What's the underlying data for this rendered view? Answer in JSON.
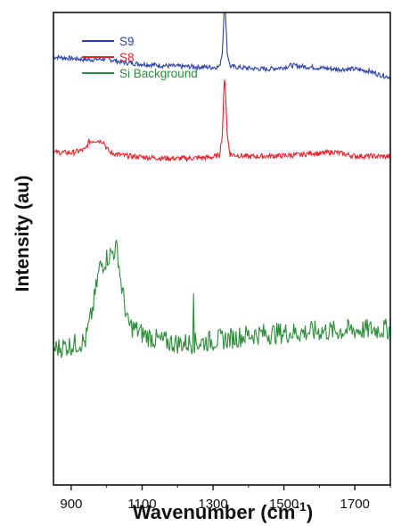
{
  "chart_data": {
    "type": "line",
    "xlabel": "Wavenumber (cm",
    "xlabel_superscript": "-1",
    "xlabel_close": ")",
    "ylabel": "Intensity (au)",
    "xlim": [
      850,
      1800
    ],
    "ylim": [
      0,
      100
    ],
    "yticks_shown": false,
    "grid": false,
    "legend_position": "top-left",
    "xticks": [
      900,
      1100,
      1300,
      1500,
      1700
    ],
    "series": [
      {
        "name": "S9",
        "color": "#2b3fa8",
        "noise": 0.5,
        "points": [
          [
            850,
            90.6
          ],
          [
            900,
            90.3
          ],
          [
            950,
            90.0
          ],
          [
            980,
            90.1
          ],
          [
            1000,
            90.2
          ],
          [
            1050,
            89.4
          ],
          [
            1100,
            89.1
          ],
          [
            1150,
            88.8
          ],
          [
            1200,
            88.6
          ],
          [
            1250,
            88.5
          ],
          [
            1300,
            88.4
          ],
          [
            1318,
            88.5
          ],
          [
            1326,
            91.5
          ],
          [
            1330,
            98.0
          ],
          [
            1333,
            104.2
          ],
          [
            1336,
            98.5
          ],
          [
            1340,
            91.5
          ],
          [
            1348,
            88.6
          ],
          [
            1400,
            88.2
          ],
          [
            1450,
            88.0
          ],
          [
            1500,
            88.4
          ],
          [
            1520,
            88.8
          ],
          [
            1550,
            88.6
          ],
          [
            1600,
            88.3
          ],
          [
            1650,
            88.0
          ],
          [
            1700,
            88.0
          ],
          [
            1740,
            87.6
          ],
          [
            1770,
            86.8
          ],
          [
            1800,
            86.3
          ]
        ]
      },
      {
        "name": "S8",
        "color": "#e8202a",
        "noise": 0.55,
        "points": [
          [
            850,
            70.4
          ],
          [
            900,
            70.3
          ],
          [
            940,
            71.0
          ],
          [
            950,
            72.7
          ],
          [
            970,
            72.9
          ],
          [
            990,
            72.8
          ],
          [
            1000,
            71.3
          ],
          [
            1010,
            70.3
          ],
          [
            1050,
            69.7
          ],
          [
            1100,
            69.4
          ],
          [
            1150,
            69.2
          ],
          [
            1200,
            69.1
          ],
          [
            1250,
            69.2
          ],
          [
            1300,
            69.4
          ],
          [
            1318,
            69.8
          ],
          [
            1326,
            74.0
          ],
          [
            1330,
            82.0
          ],
          [
            1333,
            87.2
          ],
          [
            1336,
            82.0
          ],
          [
            1340,
            74.0
          ],
          [
            1348,
            70.0
          ],
          [
            1400,
            69.5
          ],
          [
            1450,
            69.6
          ],
          [
            1500,
            69.7
          ],
          [
            1550,
            69.9
          ],
          [
            1580,
            70.3
          ],
          [
            1600,
            70.1
          ],
          [
            1640,
            70.5
          ],
          [
            1700,
            69.6
          ],
          [
            1750,
            69.6
          ],
          [
            1800,
            69.5
          ]
        ]
      },
      {
        "name": "Si Background",
        "color": "#2c8c3a",
        "noise": 2.3,
        "points": [
          [
            850,
            28.8
          ],
          [
            900,
            29.6
          ],
          [
            940,
            30.5
          ],
          [
            960,
            37.0
          ],
          [
            980,
            46.0
          ],
          [
            1000,
            48.0
          ],
          [
            1020,
            49.5
          ],
          [
            1030,
            50.0
          ],
          [
            1040,
            43.0
          ],
          [
            1060,
            34.0
          ],
          [
            1100,
            32.0
          ],
          [
            1150,
            30.5
          ],
          [
            1200,
            30.0
          ],
          [
            1250,
            30.0
          ],
          [
            1300,
            30.6
          ],
          [
            1350,
            31.0
          ],
          [
            1400,
            31.8
          ],
          [
            1450,
            32.0
          ],
          [
            1500,
            32.2
          ],
          [
            1550,
            32.3
          ],
          [
            1600,
            32.6
          ],
          [
            1650,
            32.6
          ],
          [
            1700,
            32.8
          ],
          [
            1750,
            32.9
          ],
          [
            1800,
            33.0
          ]
        ]
      }
    ],
    "annotations": [
      {
        "series": "Si Background",
        "x": 1245,
        "y": 40.5,
        "type": "spike"
      }
    ]
  }
}
